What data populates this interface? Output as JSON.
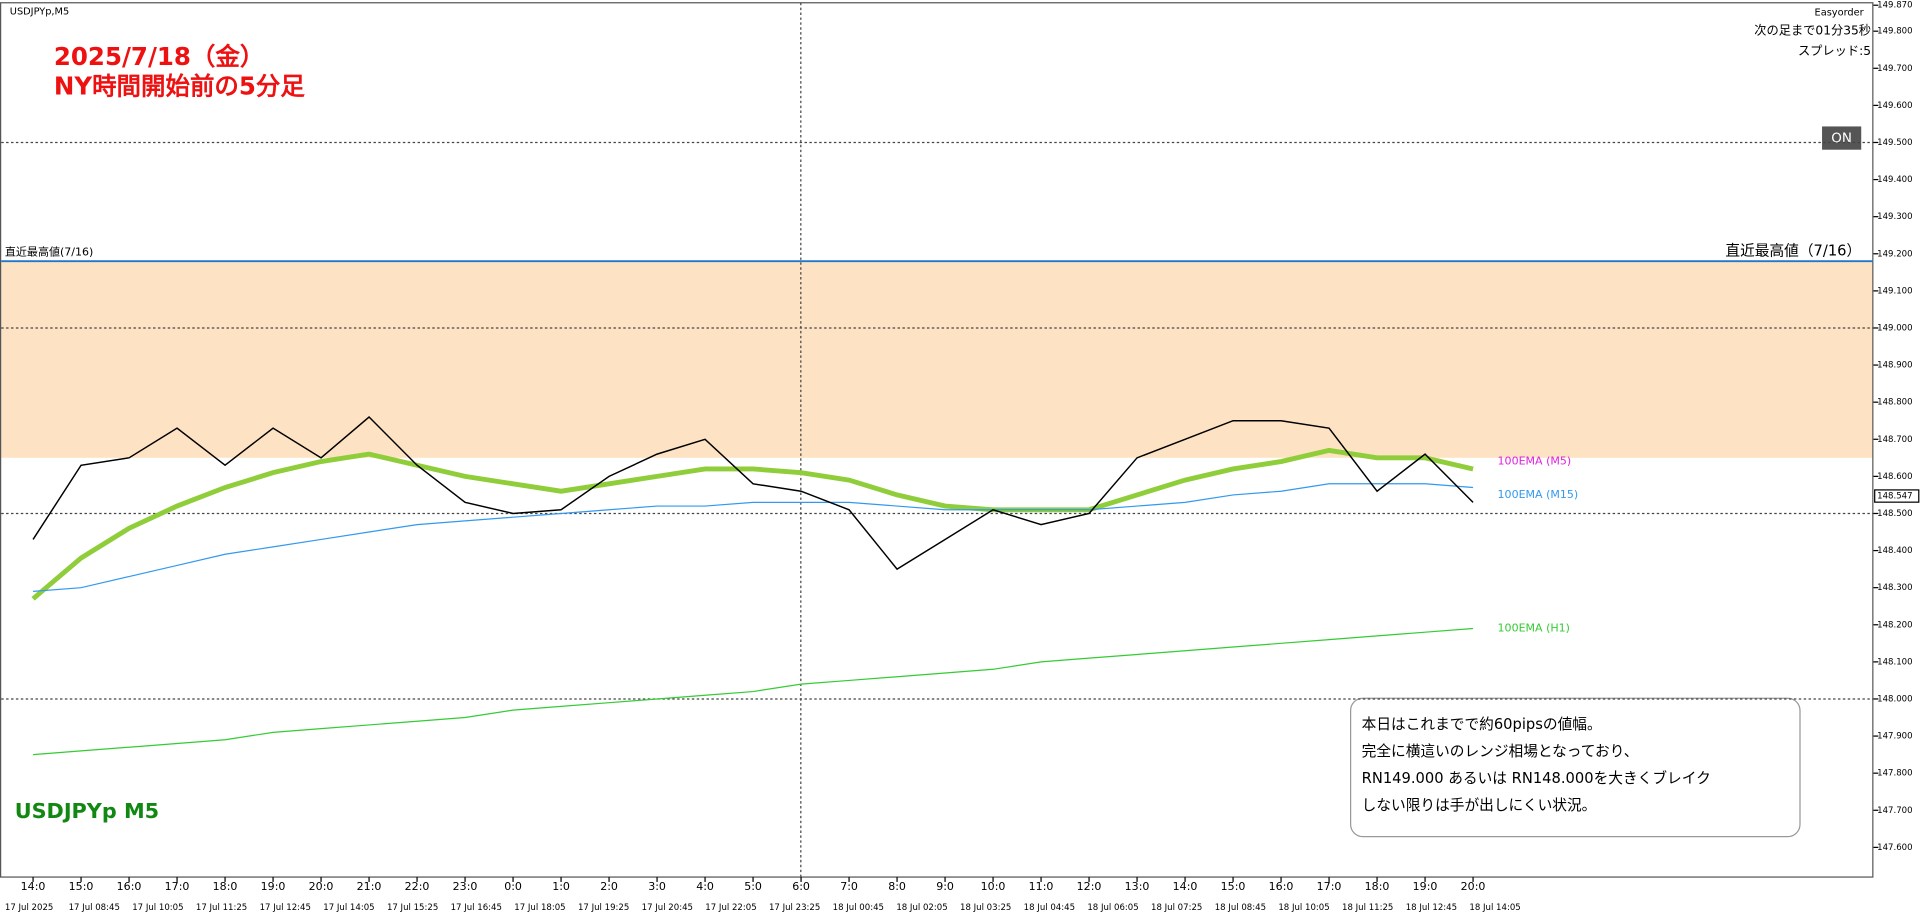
{
  "chart_data": {
    "type": "line",
    "title": "2025/7/18（金）",
    "subtitle": "NY時間開始前の5分足",
    "symbol_label": "USDJPYp M5",
    "categories": [
      "14:0",
      "15:0",
      "16:0",
      "17:0",
      "18:0",
      "19:0",
      "20:0",
      "21:0",
      "22:0",
      "23:0",
      "0:0",
      "1:0",
      "2:0",
      "3:0",
      "4:0",
      "5:0",
      "6:0",
      "7:0",
      "8:0",
      "9:0",
      "10:0",
      "11:0",
      "12:0",
      "13:0",
      "14:0",
      "15:0",
      "16:0",
      "17:0",
      "18:0",
      "19:0",
      "20:0"
    ],
    "date_labels": [
      "17 Jul 2025",
      "17 Jul 08:45",
      "17 Jul 10:05",
      "17 Jul 11:25",
      "17 Jul 12:45",
      "17 Jul 14:05",
      "17 Jul 15:25",
      "17 Jul 16:45",
      "17 Jul 18:05",
      "17 Jul 19:25",
      "17 Jul 20:45",
      "17 Jul 22:05",
      "17 Jul 23:25",
      "18 Jul 00:45",
      "18 Jul 02:05",
      "18 Jul 03:25",
      "18 Jul 04:45",
      "18 Jul 06:05",
      "18 Jul 07:25",
      "18 Jul 08:45",
      "18 Jul 10:05",
      "18 Jul 11:25",
      "18 Jul 12:45",
      "18 Jul 14:05"
    ],
    "values": [
      148.43,
      148.63,
      148.65,
      148.73,
      148.63,
      148.73,
      148.65,
      148.76,
      148.63,
      148.53,
      148.5,
      148.51,
      148.6,
      148.66,
      148.7,
      148.58,
      148.56,
      148.51,
      148.35,
      148.43,
      148.51,
      148.47,
      148.5,
      148.65,
      148.7,
      148.75,
      148.75,
      148.73,
      148.56,
      148.66,
      148.53
    ],
    "color": "#000000",
    "series": [
      {
        "name": "100EMA (M5)",
        "color": "#8fce3a",
        "label_color": "#e020e0",
        "values": [
          148.27,
          148.38,
          148.46,
          148.52,
          148.57,
          148.61,
          148.64,
          148.66,
          148.63,
          148.6,
          148.58,
          148.56,
          148.58,
          148.6,
          148.62,
          148.62,
          148.61,
          148.59,
          148.55,
          148.52,
          148.51,
          148.51,
          148.51,
          148.55,
          148.59,
          148.62,
          148.64,
          148.67,
          148.65,
          148.65,
          148.62
        ]
      },
      {
        "name": "100EMA (M15)",
        "color": "#3399ee",
        "label_color": "#3399ee",
        "values": [
          148.29,
          148.3,
          148.33,
          148.36,
          148.39,
          148.41,
          148.43,
          148.45,
          148.47,
          148.48,
          148.49,
          148.5,
          148.51,
          148.52,
          148.52,
          148.53,
          148.53,
          148.53,
          148.52,
          148.51,
          148.51,
          148.51,
          148.51,
          148.52,
          148.53,
          148.55,
          148.56,
          148.58,
          148.58,
          148.58,
          148.57
        ]
      },
      {
        "name": "100EMA (H1)",
        "color": "#33cc33",
        "label_color": "#33cc33",
        "values": [
          147.85,
          147.86,
          147.87,
          147.88,
          147.89,
          147.91,
          147.92,
          147.93,
          147.94,
          147.95,
          147.97,
          147.98,
          147.99,
          148.0,
          148.01,
          148.02,
          148.04,
          148.05,
          148.06,
          148.07,
          148.08,
          148.1,
          148.11,
          148.12,
          148.13,
          148.14,
          148.15,
          148.16,
          148.17,
          148.18,
          148.19
        ]
      }
    ],
    "ylim": [
      147.52,
      149.87
    ],
    "yticks": [
      {
        "value": 149.87,
        "label": "149.870"
      },
      {
        "value": 149.8,
        "label": "149.800"
      },
      {
        "value": 149.7,
        "label": "149.700"
      },
      {
        "value": 149.6,
        "label": "149.600"
      },
      {
        "value": 149.5,
        "label": "149.500"
      },
      {
        "value": 149.4,
        "label": "149.400"
      },
      {
        "value": 149.3,
        "label": "149.300"
      },
      {
        "value": 149.2,
        "label": "149.200"
      },
      {
        "value": 149.1,
        "label": "149.100"
      },
      {
        "value": 149.0,
        "label": "149.000"
      },
      {
        "value": 148.9,
        "label": "148.900"
      },
      {
        "value": 148.8,
        "label": "148.800"
      },
      {
        "value": 148.7,
        "label": "148.700"
      },
      {
        "value": 148.6,
        "label": "148.600"
      },
      {
        "value": 148.5,
        "label": "148.500"
      },
      {
        "value": 148.4,
        "label": "148.400"
      },
      {
        "value": 148.3,
        "label": "148.300"
      },
      {
        "value": 148.2,
        "label": "148.200"
      },
      {
        "value": 148.1,
        "label": "148.100"
      },
      {
        "value": 148.0,
        "label": "148.000"
      },
      {
        "value": 147.9,
        "label": "147.900"
      },
      {
        "value": 147.8,
        "label": "147.800"
      },
      {
        "value": 147.7,
        "label": "147.700"
      },
      {
        "value": 147.6,
        "label": "147.600"
      }
    ],
    "current_price": {
      "value": 148.547,
      "label": "148.547"
    },
    "zone": {
      "from": 148.65,
      "to": 149.18,
      "color": "#fde3c4"
    },
    "recent_high": {
      "value": 149.18,
      "label_left": "直近最高値(7/16)",
      "label_right": "直近最高値（7/16）"
    },
    "dotted_levels": [
      149.5,
      149.0,
      148.5,
      148.0
    ],
    "annotation": [
      "本日はこれまでで約60pipsの値幅。",
      "完全に横這いのレンジ相場となっており、",
      "RN149.000 あるいは RN148.000を大きくブレイク",
      "しない限りは手が出しにくい状況。"
    ]
  },
  "ui": {
    "window_title": "USDJPYp,M5",
    "plugin": "Easyorder",
    "countdown": "次の足まで01分35秒",
    "spread": "スプレッド:5",
    "toggle": "ON"
  }
}
